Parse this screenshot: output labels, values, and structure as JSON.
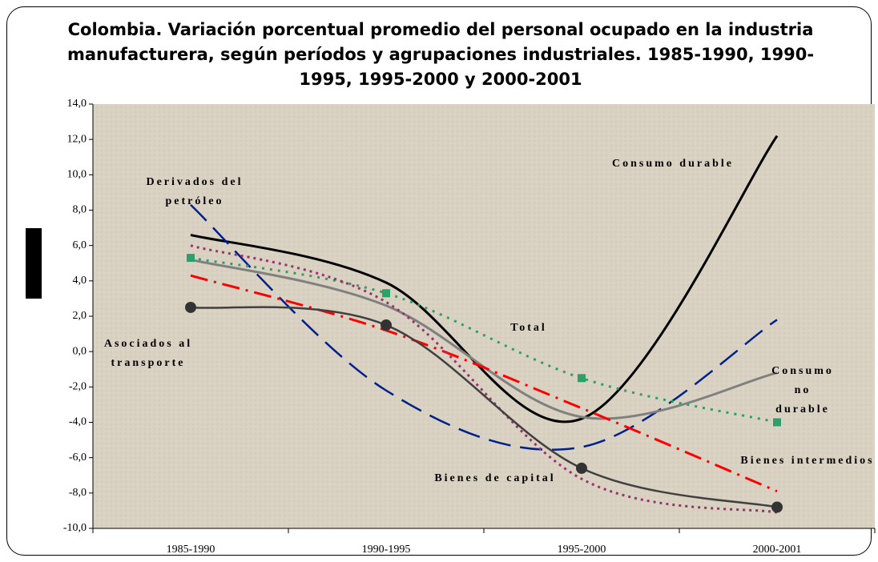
{
  "chart_data": {
    "type": "line",
    "title": "Colombia. Variación porcentual promedio del personal ocupado en la industria manufacturera, según períodos y agrupaciones industriales. 1985-1990, 1990-1995, 1995-2000 y 2000-2001",
    "categories": [
      "1985-1990",
      "1990-1995",
      "1995-2000",
      "2000-2001"
    ],
    "ylim": [
      -10,
      14
    ],
    "yticks": [
      {
        "value": -10,
        "label": "-10,0"
      },
      {
        "value": -8,
        "label": "-8,0"
      },
      {
        "value": -6,
        "label": "-6,0"
      },
      {
        "value": -4,
        "label": "-4,0"
      },
      {
        "value": -2,
        "label": "-2,0"
      },
      {
        "value": 0,
        "label": "0,0"
      },
      {
        "value": 2,
        "label": "2,0"
      },
      {
        "value": 4,
        "label": "4,0"
      },
      {
        "value": 6,
        "label": "6,0"
      },
      {
        "value": 8,
        "label": "8,0"
      },
      {
        "value": 10,
        "label": "10,0"
      },
      {
        "value": 12,
        "label": "12,0"
      },
      {
        "value": 14,
        "label": "14,0"
      }
    ],
    "series": [
      {
        "name": "Consumo durable",
        "color": "#000000",
        "values": [
          6.6,
          3.9,
          -3.8,
          12.2
        ]
      },
      {
        "name": "Derivados del petróleo",
        "color": "#00208a",
        "values": [
          8.3,
          -2.2,
          -5.4,
          1.8
        ]
      },
      {
        "name": "Total",
        "color": "#808080",
        "values": [
          5.2,
          2.6,
          -3.7,
          -1.2
        ]
      },
      {
        "name": "Consumo no durable",
        "color": "#2e9e6a",
        "values": [
          5.3,
          3.3,
          -1.5,
          -4.0
        ]
      },
      {
        "name": "Bienes intermedios",
        "color": "#ff0000",
        "values": [
          4.3,
          1.2,
          -3.2,
          -7.9
        ]
      },
      {
        "name": "Bienes de capital",
        "color": "#99336b",
        "values": [
          6.0,
          2.8,
          -7.2,
          -9.1
        ]
      },
      {
        "name": "Asociados al transporte",
        "color": "#404040",
        "values": [
          2.5,
          1.5,
          -6.6,
          -8.8
        ]
      }
    ]
  }
}
